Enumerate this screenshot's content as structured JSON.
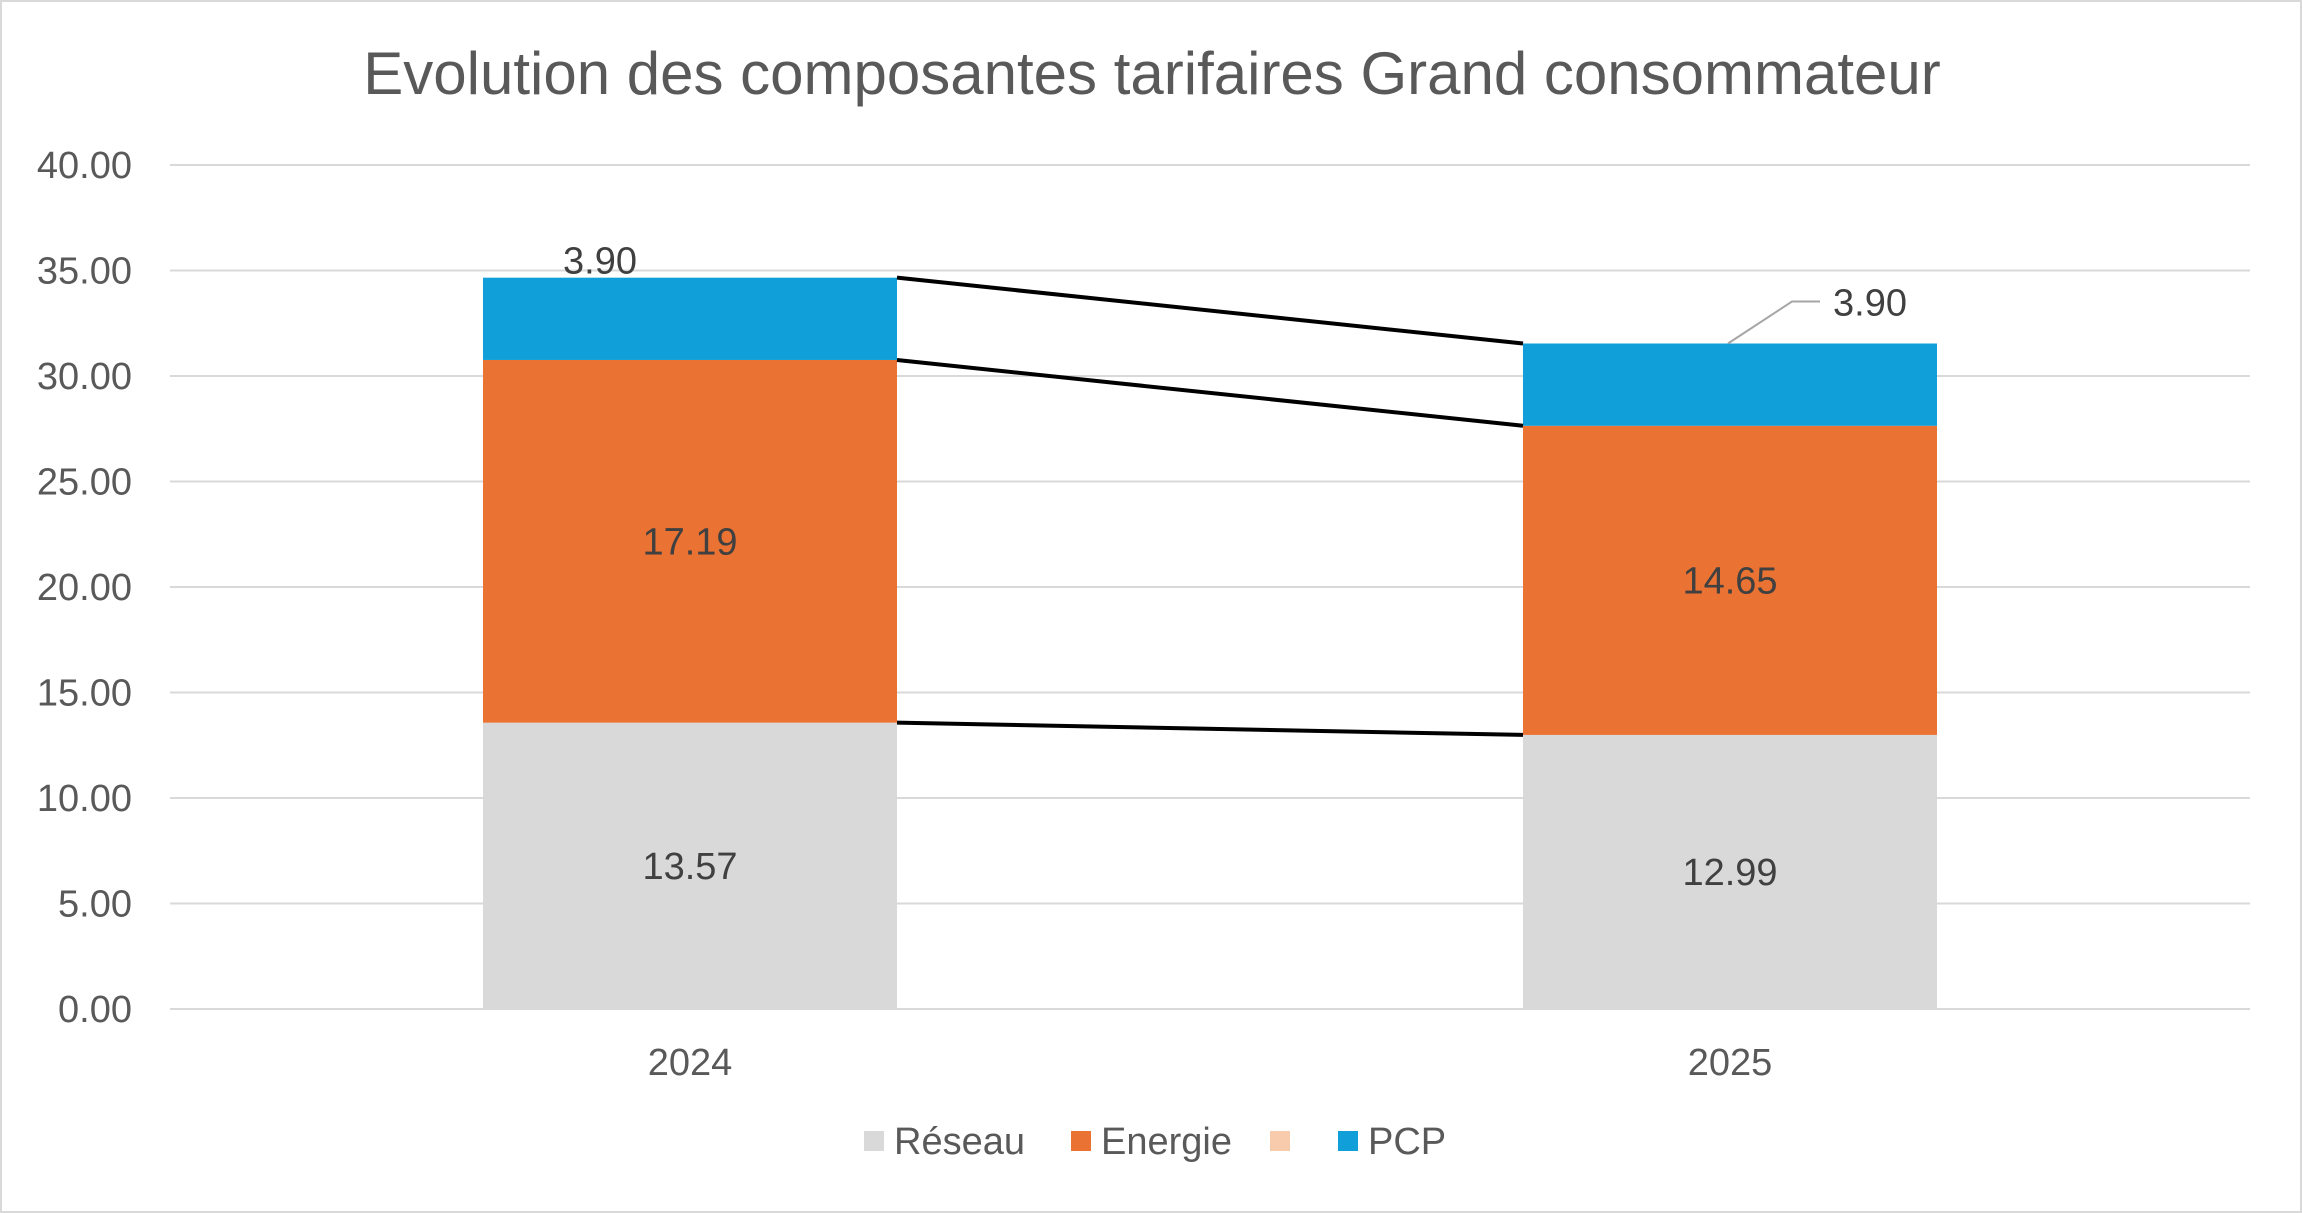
{
  "chart_data": {
    "type": "bar",
    "stacked": true,
    "title": "Evolution des composantes tarifaires Grand consommateur",
    "xlabel": "",
    "ylabel": "",
    "categories": [
      "2024",
      "2025"
    ],
    "ylim": [
      0,
      40
    ],
    "ytick_step": 5,
    "ytick_labels": [
      "0.00",
      "5.00",
      "10.00",
      "15.00",
      "20.00",
      "25.00",
      "30.00",
      "35.00",
      "40.00"
    ],
    "grid": true,
    "legend_position": "bottom",
    "series": [
      {
        "name": "Réseau",
        "values": [
          13.57,
          12.99
        ],
        "labels": [
          "13.57",
          "12.99"
        ],
        "color": "#d9d9d9"
      },
      {
        "name": "Energie",
        "values": [
          17.19,
          14.65
        ],
        "labels": [
          "17.19",
          "14.65"
        ],
        "color": "#ea7233"
      },
      {
        "name": "",
        "values": [
          0,
          0
        ],
        "labels": [],
        "color": "#f8cbad"
      },
      {
        "name": "PCP",
        "values": [
          3.9,
          3.9
        ],
        "labels": [
          "3.90",
          "3.90"
        ],
        "color": "#109fd8"
      }
    ],
    "legend": [
      {
        "name": "Réseau",
        "color": "#d9d9d9"
      },
      {
        "name": "Energie",
        "color": "#ea7233"
      },
      {
        "name": "",
        "color": "#f8cbad"
      },
      {
        "name": "PCP",
        "color": "#109fd8"
      }
    ]
  }
}
